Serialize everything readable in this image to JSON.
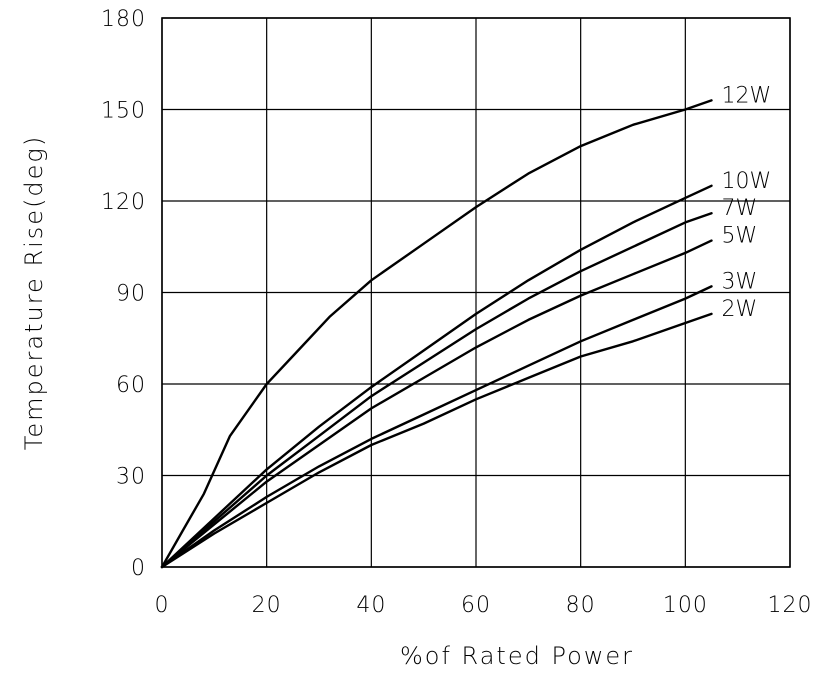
{
  "chart_data": {
    "type": "line",
    "xlabel": "%of Rated Power",
    "ylabel": "Temperature Rise(deg)",
    "xlim": [
      0,
      120
    ],
    "ylim": [
      0,
      180
    ],
    "xticks": [
      "0",
      "20",
      "40",
      "60",
      "80",
      "100",
      "120"
    ],
    "yticks": [
      "0",
      "30",
      "60",
      "90",
      "120",
      "150",
      "180"
    ],
    "grid": true,
    "series": [
      {
        "name": "12W",
        "points": [
          [
            0,
            0
          ],
          [
            4,
            12
          ],
          [
            8,
            24
          ],
          [
            13,
            43
          ],
          [
            20,
            60
          ],
          [
            26,
            71
          ],
          [
            32,
            82
          ],
          [
            40,
            94
          ],
          [
            50,
            106
          ],
          [
            60,
            118
          ],
          [
            70,
            129
          ],
          [
            80,
            138
          ],
          [
            90,
            145
          ],
          [
            100,
            150
          ],
          [
            105,
            153
          ]
        ]
      },
      {
        "name": "10W",
        "points": [
          [
            0,
            0
          ],
          [
            10,
            16
          ],
          [
            20,
            32
          ],
          [
            30,
            46
          ],
          [
            40,
            59
          ],
          [
            50,
            71
          ],
          [
            60,
            83
          ],
          [
            70,
            94
          ],
          [
            80,
            104
          ],
          [
            90,
            113
          ],
          [
            100,
            121
          ],
          [
            105,
            125
          ]
        ]
      },
      {
        "name": "7W",
        "points": [
          [
            0,
            0
          ],
          [
            10,
            15
          ],
          [
            20,
            30
          ],
          [
            30,
            43
          ],
          [
            40,
            56
          ],
          [
            50,
            67
          ],
          [
            60,
            78
          ],
          [
            70,
            88
          ],
          [
            80,
            97
          ],
          [
            90,
            105
          ],
          [
            100,
            113
          ],
          [
            105,
            116
          ]
        ]
      },
      {
        "name": "5W",
        "points": [
          [
            0,
            0
          ],
          [
            10,
            14
          ],
          [
            20,
            28
          ],
          [
            30,
            40
          ],
          [
            40,
            52
          ],
          [
            50,
            62
          ],
          [
            60,
            72
          ],
          [
            70,
            81
          ],
          [
            80,
            89
          ],
          [
            90,
            96
          ],
          [
            100,
            103
          ],
          [
            105,
            107
          ]
        ]
      },
      {
        "name": "3W",
        "points": [
          [
            0,
            0
          ],
          [
            10,
            12
          ],
          [
            20,
            23
          ],
          [
            30,
            33
          ],
          [
            40,
            42
          ],
          [
            50,
            50
          ],
          [
            60,
            58
          ],
          [
            70,
            66
          ],
          [
            80,
            74
          ],
          [
            90,
            81
          ],
          [
            100,
            88
          ],
          [
            105,
            92
          ]
        ]
      },
      {
        "name": "2W",
        "points": [
          [
            0,
            0
          ],
          [
            10,
            11
          ],
          [
            20,
            21
          ],
          [
            30,
            31
          ],
          [
            40,
            40
          ],
          [
            50,
            47
          ],
          [
            60,
            55
          ],
          [
            70,
            62
          ],
          [
            80,
            69
          ],
          [
            90,
            74
          ],
          [
            100,
            80
          ],
          [
            105,
            83
          ]
        ]
      }
    ]
  }
}
